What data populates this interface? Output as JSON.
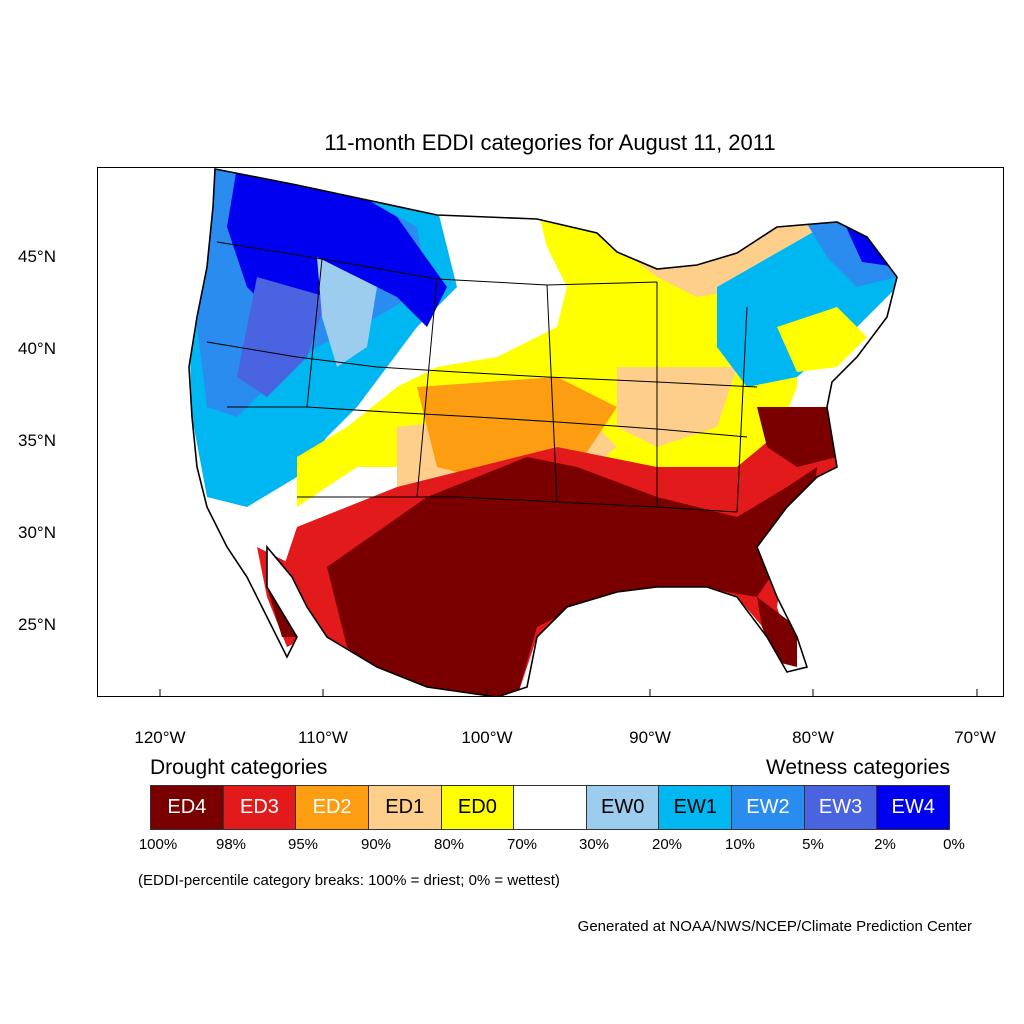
{
  "title": "11-month EDDI categories for August 11, 2011",
  "map": {
    "lat_labels": [
      "45°N",
      "40°N",
      "35°N",
      "30°N",
      "25°N"
    ],
    "lon_labels": [
      "120°W",
      "110°W",
      "100°W",
      "90°W",
      "80°W",
      "70°W"
    ]
  },
  "legend": {
    "drought_heading": "Drought categories",
    "wetness_heading": "Wetness categories",
    "categories": [
      {
        "label": "ED4",
        "color": "#7a0000",
        "text_color": "#ffffff"
      },
      {
        "label": "ED3",
        "color": "#e31a1c",
        "text_color": "#ffffff"
      },
      {
        "label": "ED2",
        "color": "#fd9e12",
        "text_color": "#ffffff"
      },
      {
        "label": "ED1",
        "color": "#fdcf8a",
        "text_color": "#000000"
      },
      {
        "label": "ED0",
        "color": "#ffff00",
        "text_color": "#000000"
      },
      {
        "label": "",
        "color": "#ffffff",
        "text_color": "#000000"
      },
      {
        "label": "EW0",
        "color": "#9dcdee",
        "text_color": "#000000"
      },
      {
        "label": "EW1",
        "color": "#00b7f1",
        "text_color": "#000000"
      },
      {
        "label": "EW2",
        "color": "#2b8cf0",
        "text_color": "#ffffff"
      },
      {
        "label": "EW3",
        "color": "#4a63e0",
        "text_color": "#ffffff"
      },
      {
        "label": "EW4",
        "color": "#0000f0",
        "text_color": "#ffffff"
      }
    ],
    "breaks": [
      "100%",
      "98%",
      "95%",
      "90%",
      "80%",
      "70%",
      "30%",
      "20%",
      "10%",
      "5%",
      "2%",
      "0%"
    ]
  },
  "note": "(EDDI-percentile category breaks: 100% = driest; 0% = wettest)",
  "credit": "Generated at NOAA/NWS/NCEP/Climate Prediction Center"
}
